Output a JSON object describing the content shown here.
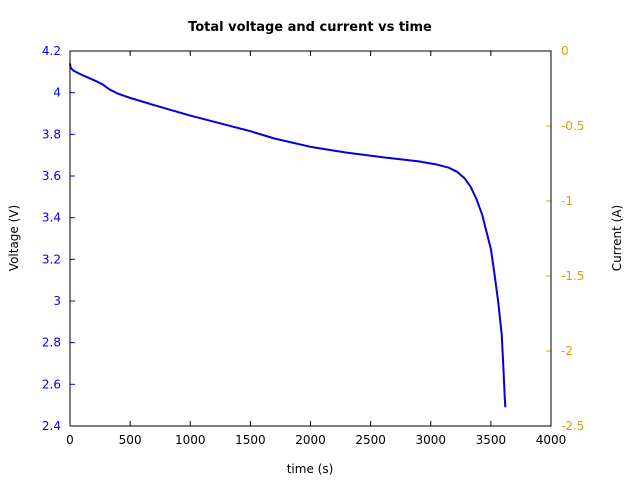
{
  "chart_data": {
    "type": "line",
    "title": "Total voltage and current vs time",
    "xlabel": "time (s)",
    "ylabel": "Voltage (V)",
    "y2label": "Current (A)",
    "xlim": [
      0,
      4000
    ],
    "ylim": [
      2.4,
      4.2
    ],
    "y2lim": [
      -2.5,
      0
    ],
    "xticks": [
      "0",
      "500",
      "1000",
      "1500",
      "2000",
      "2500",
      "3000",
      "3500",
      "4000"
    ],
    "yticks": [
      "2.4",
      "2.6",
      "2.8",
      "3",
      "3.2",
      "3.4",
      "3.6",
      "3.8",
      "4",
      "4.2"
    ],
    "y2ticks": [
      "-2.5",
      "-2",
      "-1.5",
      "-1",
      "-0.5",
      "0"
    ],
    "grid": false,
    "colors": {
      "left_axis": "#0000ff",
      "right_axis": "#e0a000",
      "voltage_line": "#0000dd"
    },
    "series": [
      {
        "axis": "left",
        "color": "#0000dd",
        "x": [
          0,
          5,
          30,
          100,
          200,
          270,
          330,
          400,
          500,
          700,
          1000,
          1300,
          1500,
          1700,
          2000,
          2300,
          2600,
          2900,
          3050,
          3150,
          3220,
          3280,
          3330,
          3380,
          3430,
          3460,
          3500,
          3530,
          3560,
          3590,
          3605,
          3615,
          3620
        ],
        "y": [
          4.14,
          4.12,
          4.105,
          4.085,
          4.06,
          4.04,
          4.015,
          3.995,
          3.975,
          3.94,
          3.89,
          3.845,
          3.815,
          3.78,
          3.74,
          3.712,
          3.69,
          3.67,
          3.655,
          3.64,
          3.62,
          3.59,
          3.55,
          3.49,
          3.41,
          3.34,
          3.25,
          3.13,
          3.0,
          2.84,
          2.67,
          2.54,
          2.49
        ]
      }
    ]
  }
}
